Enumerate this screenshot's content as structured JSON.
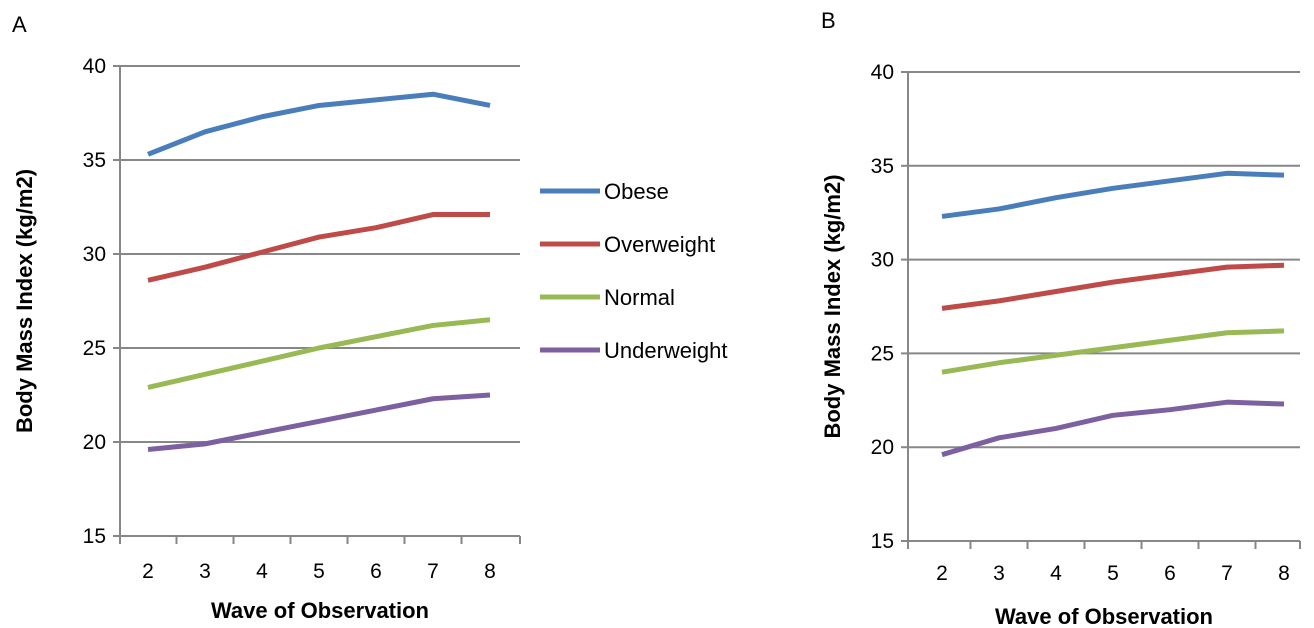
{
  "chart_data": [
    {
      "panel": "A",
      "type": "line",
      "x": [
        "2",
        "3",
        "4",
        "5",
        "6",
        "7",
        "8"
      ],
      "xlabel": "Wave of Observation",
      "ylabel": "Body Mass Index (kg/m2)",
      "ylim": [
        15,
        40
      ],
      "yticks": [
        15,
        20,
        25,
        30,
        35,
        40
      ],
      "grid": true,
      "legend": "right",
      "series": [
        {
          "name": "Obese",
          "color": "#4a7ebb",
          "values": [
            35.3,
            36.5,
            37.3,
            37.9,
            38.2,
            38.5,
            37.9
          ]
        },
        {
          "name": "Overweight",
          "color": "#be4b48",
          "values": [
            28.6,
            29.3,
            30.1,
            30.9,
            31.4,
            32.1,
            32.1
          ]
        },
        {
          "name": "Normal",
          "color": "#98b954",
          "values": [
            22.9,
            23.6,
            24.3,
            25.0,
            25.6,
            26.2,
            26.5
          ]
        },
        {
          "name": "Underweight",
          "color": "#7d60a0",
          "values": [
            19.6,
            19.9,
            20.5,
            21.1,
            21.7,
            22.3,
            22.5
          ]
        }
      ]
    },
    {
      "panel": "B",
      "type": "line",
      "x": [
        "2",
        "3",
        "4",
        "5",
        "6",
        "7",
        "8"
      ],
      "xlabel": "Wave of Observation",
      "ylabel": "Body Mass Index (kg/m2)",
      "ylim": [
        15,
        40
      ],
      "yticks": [
        15,
        20,
        25,
        30,
        35,
        40
      ],
      "grid": true,
      "series": [
        {
          "color": "#4a7ebb",
          "values": [
            32.3,
            32.7,
            33.3,
            33.8,
            34.2,
            34.6,
            34.5
          ]
        },
        {
          "color": "#be4b48",
          "values": [
            27.4,
            27.8,
            28.3,
            28.8,
            29.2,
            29.6,
            29.7
          ]
        },
        {
          "color": "#98b954",
          "values": [
            24.0,
            24.5,
            24.9,
            25.3,
            25.7,
            26.1,
            26.2
          ]
        },
        {
          "color": "#7d60a0",
          "values": [
            19.6,
            20.5,
            21.0,
            21.7,
            22.0,
            22.4,
            22.3
          ]
        }
      ]
    }
  ]
}
